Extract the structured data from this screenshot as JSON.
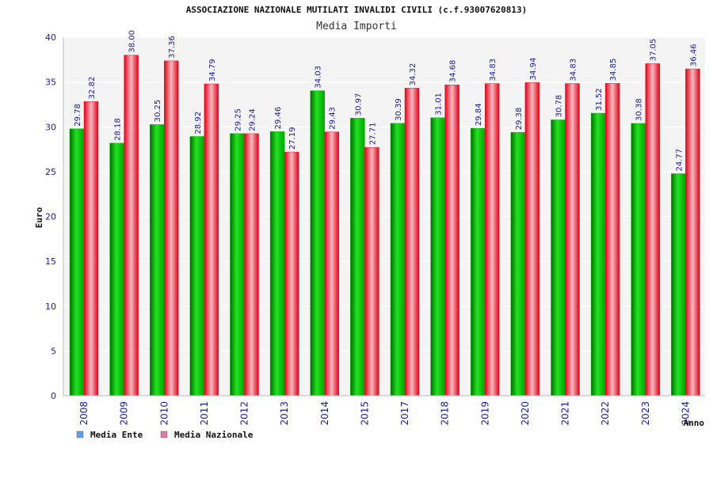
{
  "colors": {
    "ente": "#00c000",
    "nazionale": "#e8202e",
    "legend_ente": "#5fa0e8",
    "legend_nazionale": "#e07aa8",
    "plot_bg": "#f4f4f4",
    "grid": "#ffffff"
  },
  "chart_data": {
    "type": "bar",
    "title": "ASSOCIAZIONE NAZIONALE MUTILATI INVALIDI CIVILI (c.f.93007620813)",
    "subtitle": "Media Importi",
    "xlabel": "Anno",
    "ylabel": "Euro",
    "ylim": [
      0,
      40
    ],
    "yticks": [
      "0",
      "5",
      "10",
      "15",
      "20",
      "25",
      "30",
      "35",
      "40"
    ],
    "grid": true,
    "legend_position": "bottom-left",
    "categories": [
      "2008",
      "2009",
      "2010",
      "2011",
      "2012",
      "2013",
      "2014",
      "2015",
      "2017",
      "2018",
      "2019",
      "2020",
      "2021",
      "2022",
      "2023",
      "2024"
    ],
    "series": [
      {
        "name": "Media Ente",
        "values": [
          29.78,
          28.18,
          30.25,
          28.92,
          29.25,
          29.46,
          34.03,
          30.97,
          30.39,
          31.01,
          29.84,
          29.38,
          30.78,
          31.52,
          30.38,
          24.77
        ],
        "labels": [
          "29.78",
          "28.18",
          "30.25",
          "28.92",
          "29.25",
          "29.46",
          "34.03",
          "30.97",
          "30.39",
          "31.01",
          "29.84",
          "29.38",
          "30.78",
          "31.52",
          "30.38",
          "24.77"
        ]
      },
      {
        "name": "Media Nazionale",
        "values": [
          32.82,
          38.0,
          37.36,
          34.79,
          29.24,
          27.19,
          29.43,
          27.71,
          34.32,
          34.68,
          34.83,
          34.94,
          34.83,
          34.85,
          37.05,
          36.46
        ],
        "labels": [
          "32.82",
          "38.00",
          "37.36",
          "34.79",
          "29.24",
          "27.19",
          "29.43",
          "27.71",
          "34.32",
          "34.68",
          "34.83",
          "34.94",
          "34.83",
          "34.85",
          "37.05",
          "36.46"
        ]
      }
    ]
  }
}
